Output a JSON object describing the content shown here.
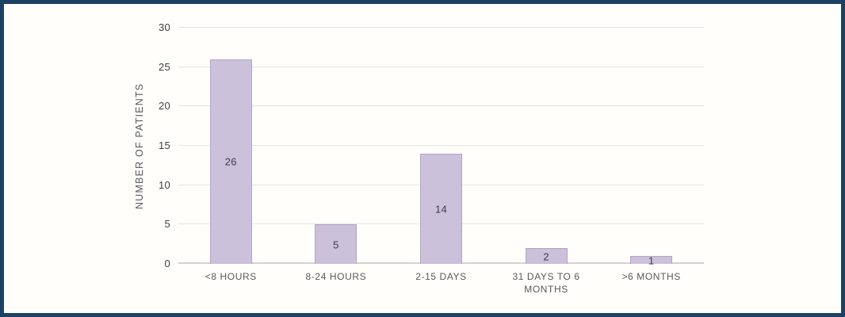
{
  "chart_data": {
    "type": "bar",
    "categories": [
      "<8 HOURS",
      "8-24 HOURS",
      "2-15 DAYS",
      "31 DAYS TO 6 MONTHS",
      ">6 MONTHS"
    ],
    "values": [
      26,
      5,
      14,
      2,
      1
    ],
    "title": "",
    "xlabel": "",
    "ylabel": "NUMBER OF PATIENTS",
    "ylim": [
      0,
      30
    ],
    "yticks": [
      0,
      5,
      10,
      15,
      20,
      25,
      30
    ],
    "grid": true,
    "legend": "none",
    "data_labels": [
      26,
      5,
      14,
      2,
      1
    ],
    "data_label_position": "center-inside-bar"
  },
  "colors": {
    "frame_border": "#1d4164",
    "background": "#fffefb",
    "bar_fill": "#cbc1da",
    "bar_border": "#b1a5c6",
    "gridline": "#e4e4e4",
    "axis_line": "#d2d2d2",
    "tick_text": "#3f3f3f",
    "label_text": "#595959",
    "value_text": "#3d3d46"
  }
}
